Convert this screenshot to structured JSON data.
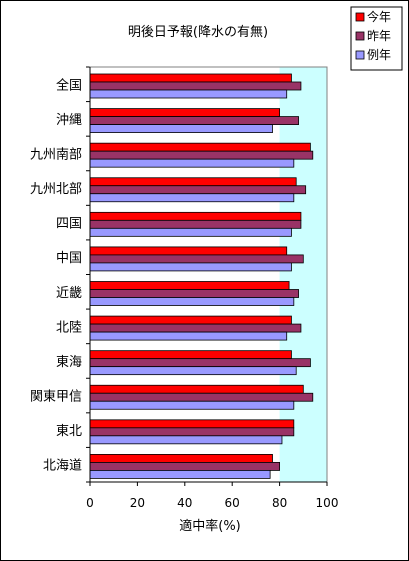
{
  "chart_data": {
    "type": "bar",
    "orientation": "horizontal",
    "title": "明後日予報(降水の有無)",
    "xlabel": "適中率(%)",
    "ylabel": "",
    "xlim": [
      0,
      100
    ],
    "xticks": [
      "0",
      "20",
      "40",
      "60",
      "80",
      "100"
    ],
    "categories": [
      "全国",
      "沖縄",
      "九州南部",
      "九州北部",
      "四国",
      "中国",
      "近畿",
      "北陸",
      "東海",
      "関東甲信",
      "東北",
      "北海道"
    ],
    "series": [
      {
        "name": "今年",
        "color": "#ff0000",
        "values": [
          85,
          80,
          93,
          87,
          89,
          83,
          84,
          85,
          85,
          90,
          86,
          77
        ]
      },
      {
        "name": "昨年",
        "color": "#993366",
        "values": [
          89,
          88,
          94,
          91,
          89,
          90,
          88,
          89,
          93,
          94,
          86,
          80
        ]
      },
      {
        "name": "例年",
        "color": "#9999ff",
        "values": [
          83,
          77,
          86,
          86,
          85,
          85,
          86,
          83,
          87,
          86,
          81,
          76
        ]
      }
    ],
    "highlight_band": {
      "from": 80,
      "to": 100,
      "color": "#ccffff"
    },
    "legend_position": "top-right",
    "grid": false
  }
}
